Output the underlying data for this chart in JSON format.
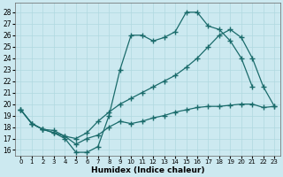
{
  "xlabel": "Humidex (Indice chaleur)",
  "bg_color": "#cce9f0",
  "line_color": "#1a6b6b",
  "grid_color": "#b0d8e0",
  "xlim": [
    -0.5,
    23.5
  ],
  "ylim": [
    15.5,
    28.8
  ],
  "xticks": [
    0,
    1,
    2,
    3,
    4,
    5,
    6,
    7,
    8,
    9,
    10,
    11,
    12,
    13,
    14,
    15,
    16,
    17,
    18,
    19,
    20,
    21,
    22,
    23
  ],
  "yticks": [
    16,
    17,
    18,
    19,
    20,
    21,
    22,
    23,
    24,
    25,
    26,
    27,
    28
  ],
  "curve1_x": [
    0,
    1,
    2,
    3,
    4,
    5,
    6,
    7,
    8,
    9,
    10,
    11,
    12,
    13,
    14,
    15,
    16,
    17,
    18,
    19,
    20,
    21
  ],
  "curve1_y": [
    19.5,
    18.3,
    17.8,
    17.5,
    17.0,
    15.8,
    15.8,
    16.3,
    19.0,
    23.0,
    26.0,
    26.0,
    25.5,
    25.8,
    26.3,
    28.0,
    28.0,
    26.8,
    26.5,
    25.5,
    24.0,
    21.5
  ],
  "curve2_x": [
    0,
    1,
    2,
    3,
    4,
    5,
    6,
    7,
    8,
    9,
    10,
    11,
    12,
    13,
    14,
    15,
    16,
    17,
    18,
    19,
    20,
    21,
    22,
    23
  ],
  "curve2_y": [
    19.5,
    18.3,
    17.8,
    17.7,
    17.2,
    17.0,
    17.5,
    18.5,
    19.3,
    20.0,
    20.5,
    21.0,
    21.5,
    22.0,
    22.5,
    23.2,
    24.0,
    25.0,
    26.0,
    26.5,
    25.8,
    24.0,
    21.5,
    19.8
  ],
  "curve3_x": [
    0,
    1,
    2,
    3,
    4,
    5,
    6,
    7,
    8,
    9,
    10,
    11,
    12,
    13,
    14,
    15,
    16,
    17,
    18,
    19,
    20,
    21,
    22,
    23
  ],
  "curve3_y": [
    19.5,
    18.3,
    17.8,
    17.5,
    17.2,
    16.5,
    17.0,
    17.3,
    18.0,
    18.5,
    18.3,
    18.5,
    18.8,
    19.0,
    19.3,
    19.5,
    19.7,
    19.8,
    19.8,
    19.9,
    20.0,
    20.0,
    19.7,
    19.8
  ]
}
